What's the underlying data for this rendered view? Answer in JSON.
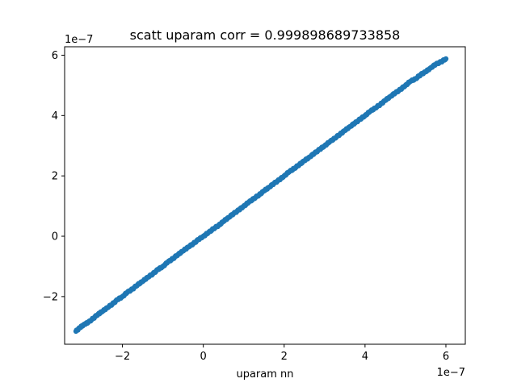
{
  "chart_data": {
    "type": "scatter",
    "title": "scatt uparam corr = 0.999898689733858",
    "xlabel": "uparam nn",
    "ylabel": "",
    "x_offset_text": "1e−7",
    "y_offset_text": "1e−7",
    "xlim": [
      -3.43,
      6.48
    ],
    "ylim": [
      -3.58,
      6.28
    ],
    "xticks": [
      -2,
      0,
      2,
      4,
      6
    ],
    "yticks": [
      -2,
      0,
      2,
      4,
      6
    ],
    "xtick_labels": [
      "−2",
      "0",
      "2",
      "4",
      "6"
    ],
    "ytick_labels": [
      "−2",
      "0",
      "2",
      "4",
      "6"
    ],
    "scale_note": "values shown in units of 1e-7",
    "grid": false,
    "series": [
      {
        "color": "#1f77b4",
        "marker": "circle",
        "points": [
          [
            -3.15,
            -3.15
          ],
          [
            -3.05,
            -3.03
          ],
          [
            -2.95,
            -2.92
          ],
          [
            -2.85,
            -2.86
          ],
          [
            -2.72,
            -2.72
          ],
          [
            -2.6,
            -2.58
          ],
          [
            -2.5,
            -2.5
          ],
          [
            -2.38,
            -2.37
          ],
          [
            -2.25,
            -2.25
          ],
          [
            -2.12,
            -2.1
          ],
          [
            -2.0,
            -2.0
          ],
          [
            -1.88,
            -1.86
          ],
          [
            -1.75,
            -1.75
          ],
          [
            -1.62,
            -1.6
          ],
          [
            -1.5,
            -1.5
          ],
          [
            -1.38,
            -1.36
          ],
          [
            -1.25,
            -1.25
          ],
          [
            -1.12,
            -1.1
          ],
          [
            -1.0,
            -1.0
          ],
          [
            -0.88,
            -0.86
          ],
          [
            -0.75,
            -0.74
          ],
          [
            -0.62,
            -0.6
          ],
          [
            -0.5,
            -0.49
          ],
          [
            -0.38,
            -0.36
          ],
          [
            -0.25,
            -0.25
          ],
          [
            -0.12,
            -0.11
          ],
          [
            0.0,
            0.0
          ],
          [
            0.12,
            0.11
          ],
          [
            0.25,
            0.25
          ],
          [
            0.38,
            0.36
          ],
          [
            0.5,
            0.49
          ],
          [
            0.62,
            0.62
          ],
          [
            0.75,
            0.75
          ],
          [
            0.88,
            0.87
          ],
          [
            1.0,
            1.0
          ],
          [
            1.12,
            1.12
          ],
          [
            1.25,
            1.25
          ],
          [
            1.38,
            1.37
          ],
          [
            1.5,
            1.5
          ],
          [
            1.62,
            1.62
          ],
          [
            1.75,
            1.75
          ],
          [
            1.88,
            1.87
          ],
          [
            2.0,
            2.0
          ],
          [
            2.12,
            2.13
          ],
          [
            2.25,
            2.25
          ],
          [
            2.38,
            2.38
          ],
          [
            2.5,
            2.5
          ],
          [
            2.62,
            2.62
          ],
          [
            2.75,
            2.75
          ],
          [
            2.88,
            2.88
          ],
          [
            3.0,
            3.0
          ],
          [
            3.12,
            3.12
          ],
          [
            3.25,
            3.25
          ],
          [
            3.38,
            3.38
          ],
          [
            3.5,
            3.5
          ],
          [
            3.62,
            3.63
          ],
          [
            3.75,
            3.75
          ],
          [
            3.88,
            3.88
          ],
          [
            4.0,
            4.0
          ],
          [
            4.12,
            4.13
          ],
          [
            4.25,
            4.25
          ],
          [
            4.38,
            4.37
          ],
          [
            4.5,
            4.5
          ],
          [
            4.62,
            4.63
          ],
          [
            4.75,
            4.75
          ],
          [
            4.88,
            4.87
          ],
          [
            5.0,
            5.0
          ],
          [
            5.12,
            5.13
          ],
          [
            5.25,
            5.22
          ],
          [
            5.38,
            5.36
          ],
          [
            5.5,
            5.45
          ],
          [
            5.62,
            5.58
          ],
          [
            5.75,
            5.7
          ],
          [
            5.88,
            5.78
          ],
          [
            6.0,
            5.88
          ]
        ]
      }
    ]
  }
}
